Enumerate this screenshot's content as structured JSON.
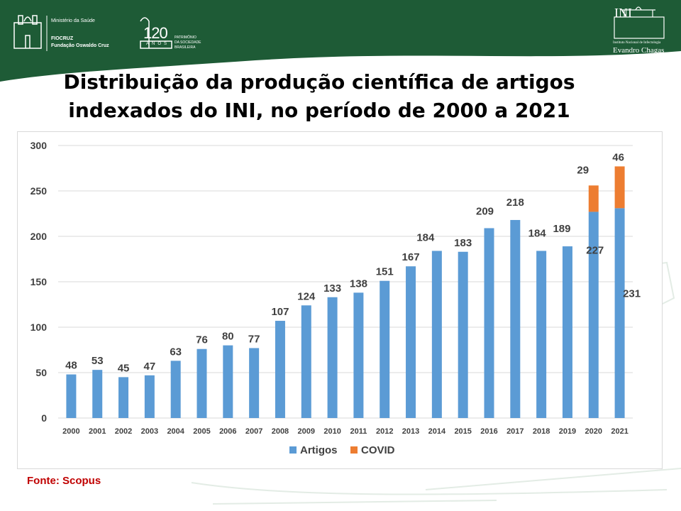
{
  "header": {
    "ministry": "Ministério da Saúde",
    "fiocruz_line1": "FIOCRUZ",
    "fiocruz_line2": "Fundação Oswaldo Cruz",
    "anniversary_number": "120",
    "anniversary_word": "ANOS",
    "heritage_line1": "PATRIMÔNIO",
    "heritage_line2": "DA SOCIEDADE",
    "heritage_line3": "BRASILEIRA",
    "ini_acronym": "INI",
    "ini_subtitle": "Instituto Nacional de Infectologia",
    "ini_name": "Evandro Chagas",
    "band_color": "#1e5b36"
  },
  "title_line1": "Distribuição da produção científica de artigos",
  "title_line2": "indexados do INI, no período de 2000 a 2021",
  "source": "Fonte: Scopus",
  "chart_data": {
    "type": "bar",
    "stacked": true,
    "categories": [
      "2000",
      "2001",
      "2002",
      "2003",
      "2004",
      "2005",
      "2006",
      "2007",
      "2008",
      "2009",
      "2010",
      "2011",
      "2012",
      "2013",
      "2014",
      "2015",
      "2016",
      "2017",
      "2018",
      "2019",
      "2020",
      "2021"
    ],
    "series": [
      {
        "name": "Artigos",
        "color": "#5b9bd5",
        "values": [
          48,
          53,
          45,
          47,
          63,
          76,
          80,
          77,
          107,
          124,
          133,
          138,
          151,
          167,
          184,
          183,
          209,
          218,
          184,
          189,
          227,
          231
        ]
      },
      {
        "name": "COVID",
        "color": "#ed7d31",
        "values": [
          null,
          null,
          null,
          null,
          null,
          null,
          null,
          null,
          null,
          null,
          null,
          null,
          null,
          null,
          null,
          null,
          null,
          null,
          null,
          null,
          29,
          46
        ]
      }
    ],
    "ylim": [
      0,
      300
    ],
    "yticks": [
      0,
      50,
      100,
      150,
      200,
      250,
      300
    ],
    "grid": true,
    "legend": "bottom"
  }
}
